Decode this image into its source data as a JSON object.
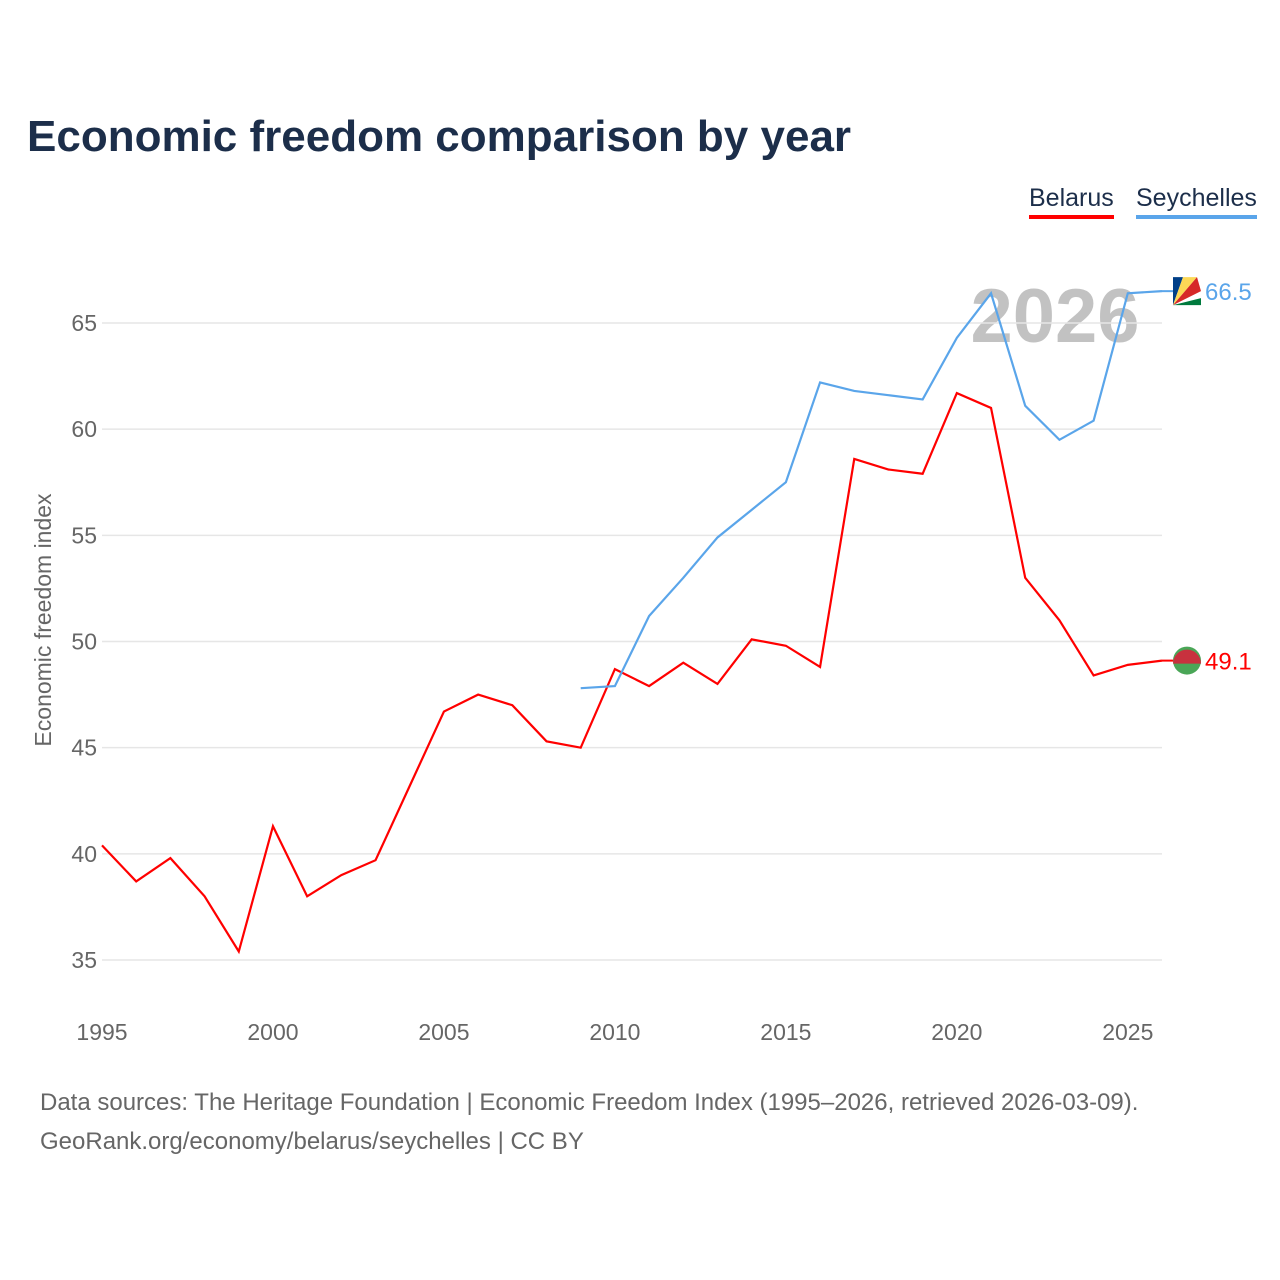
{
  "title": "Economic freedom comparison by year",
  "legend": [
    {
      "name": "Belarus",
      "color": "#ff0000"
    },
    {
      "name": "Seychelles",
      "color": "#5aa5ea"
    }
  ],
  "year_watermark": "2026",
  "footer": {
    "line1": "Data sources: The Heritage Foundation | Economic Freedom Index (1995–2026, retrieved 2026-03-09).",
    "line2": "GeoRank.org/economy/belarus/seychelles | CC BY"
  },
  "chart_data": {
    "type": "line",
    "title": "Economic freedom comparison by year",
    "xlabel": "",
    "ylabel": "Economic freedom index",
    "xlim": [
      1995,
      2026
    ],
    "ylim": [
      35,
      65
    ],
    "xticks": [
      "1995",
      "2000",
      "2005",
      "2010",
      "2015",
      "2020",
      "2025"
    ],
    "yticks": [
      "35",
      "40",
      "45",
      "50",
      "55",
      "60",
      "65"
    ],
    "grid": true,
    "legend_position": "top-right",
    "series": [
      {
        "name": "Belarus",
        "color": "#ff0000",
        "end_label": "49.1",
        "x": [
          1995,
          1996,
          1997,
          1998,
          1999,
          2000,
          2001,
          2002,
          2003,
          2004,
          2005,
          2006,
          2007,
          2008,
          2009,
          2010,
          2011,
          2012,
          2013,
          2014,
          2015,
          2016,
          2017,
          2018,
          2019,
          2020,
          2021,
          2022,
          2023,
          2024,
          2025,
          2026
        ],
        "values": [
          40.4,
          38.7,
          39.8,
          38.0,
          35.4,
          41.3,
          38.0,
          39.0,
          39.7,
          43.2,
          46.7,
          47.5,
          47.0,
          45.3,
          45.0,
          48.7,
          47.9,
          49.0,
          48.0,
          50.1,
          49.8,
          48.8,
          58.6,
          58.1,
          57.9,
          61.7,
          61.0,
          53.0,
          51.0,
          48.4,
          48.9,
          49.1
        ]
      },
      {
        "name": "Seychelles",
        "color": "#5aa5ea",
        "end_label": "66.5",
        "x": [
          2009,
          2010,
          2011,
          2012,
          2013,
          2014,
          2015,
          2016,
          2017,
          2018,
          2019,
          2020,
          2021,
          2022,
          2023,
          2024,
          2025,
          2026
        ],
        "values": [
          47.8,
          47.9,
          51.2,
          53.0,
          54.9,
          56.2,
          57.5,
          62.2,
          61.8,
          61.6,
          61.4,
          64.3,
          66.4,
          61.1,
          59.5,
          60.4,
          66.4,
          66.5
        ]
      }
    ]
  }
}
